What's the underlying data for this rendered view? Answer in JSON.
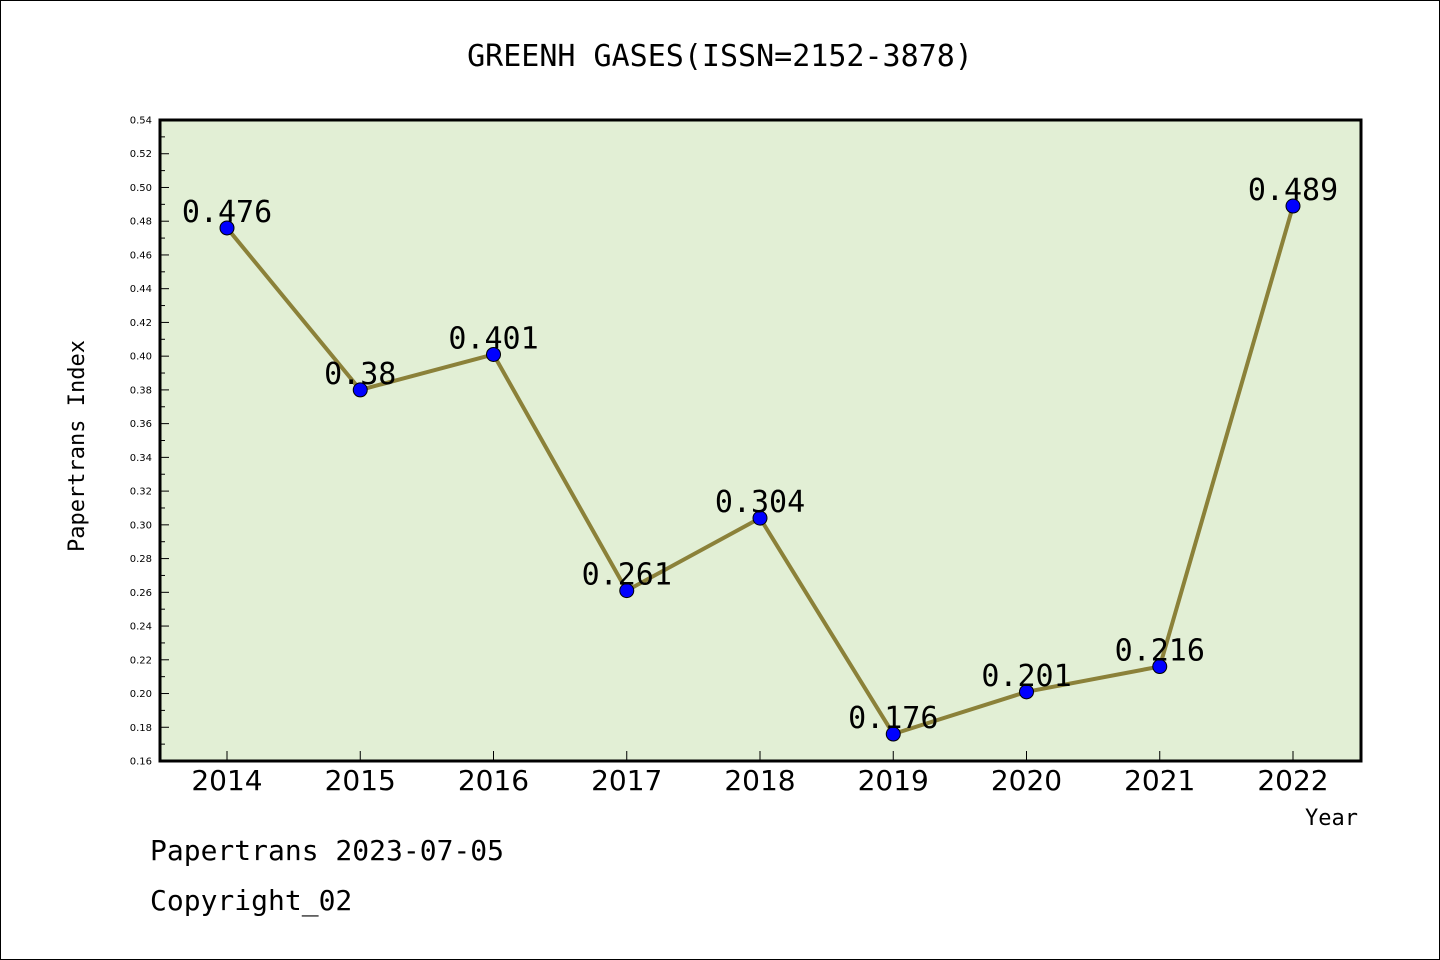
{
  "chart_data": {
    "type": "line",
    "title": "GREENH GASES(ISSN=2152-3878)",
    "xlabel": "Year",
    "ylabel": "Papertrans Index",
    "categories": [
      "2014",
      "2015",
      "2016",
      "2017",
      "2018",
      "2019",
      "2020",
      "2021",
      "2022"
    ],
    "values": [
      0.476,
      0.38,
      0.401,
      0.261,
      0.304,
      0.176,
      0.201,
      0.216,
      0.489
    ],
    "data_labels": [
      "0.476",
      "0.38",
      "0.401",
      "0.261",
      "0.304",
      "0.176",
      "0.201",
      "0.216",
      "0.489"
    ],
    "ylim": [
      0.16,
      0.54
    ],
    "yticks": [
      "0.16",
      "0.18",
      "0.20",
      "0.22",
      "0.24",
      "0.26",
      "0.28",
      "0.30",
      "0.32",
      "0.34",
      "0.36",
      "0.38",
      "0.40",
      "0.42",
      "0.44",
      "0.46",
      "0.48",
      "0.50",
      "0.52",
      "0.54"
    ],
    "grid": false,
    "colors": {
      "plot_background": "#e2efd5",
      "line": "#8b8139",
      "marker": "#0000ff"
    }
  },
  "footer": {
    "line1": "Papertrans 2023-07-05",
    "line2": "Copyright_02"
  }
}
